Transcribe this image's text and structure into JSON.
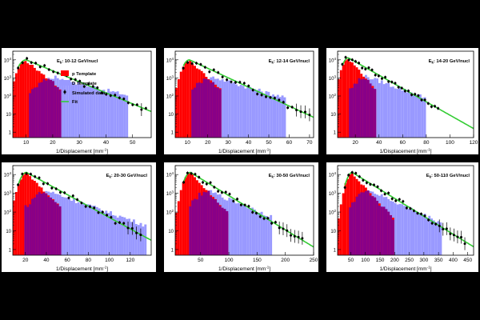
{
  "colors": {
    "p_template": "#ff0000",
    "d_template": "#9999ff",
    "overlap": "#880088",
    "data_points": "#000000",
    "fit": "#33cc33",
    "panel_background": "#ffffff",
    "page_background": "#000000"
  },
  "legend": {
    "p_label": "p Template",
    "d_label": "D Template",
    "data_label": "Simulated data",
    "fit_label": "Fit"
  },
  "chart_data": [
    {
      "type": "histogram",
      "panel": "top-left",
      "energy_label_main": "E",
      "energy_label_sub": "k",
      "energy_label_rest": ": 10-12 GeV/nucl",
      "xlabel": "1/Displacement [mm",
      "xlabel_sup": "-1",
      "xlabel_end": "]",
      "xlim": [
        5,
        57
      ],
      "xticks": [
        10,
        20,
        30,
        40,
        50
      ],
      "y_scale": "log",
      "ylim": [
        0.5,
        30000
      ],
      "yticks": [
        {
          "value": 1,
          "exp": ""
        },
        {
          "value": 10,
          "exp": ""
        },
        {
          "value": 100,
          "exp": "2"
        },
        {
          "value": 1000,
          "exp": "3"
        },
        {
          "value": 10000,
          "exp": "4"
        }
      ],
      "legend_shown": true,
      "legend_position": "top-left",
      "p_template": {
        "peak_x": 10,
        "peak": 9000,
        "width_low": 2.0,
        "decay_per_unit": 0.28,
        "end": 23
      },
      "d_template": {
        "peak_x": 21,
        "peak": 1100,
        "width_low": 5.0,
        "decay_per_unit": 0.085,
        "end": 48,
        "start": 11
      },
      "data": {
        "peak_x": 10,
        "peak": 10000,
        "width_low": 2.2,
        "decay_per_unit": 0.14,
        "points": 30,
        "x_start": 7,
        "x_end": 55
      }
    },
    {
      "type": "histogram",
      "panel": "top-middle",
      "energy_label_main": "E",
      "energy_label_sub": "k",
      "energy_label_rest": ": 12-14 GeV/nucl",
      "xlabel": "1/Displacement [mm",
      "xlabel_sup": "-1",
      "xlabel_end": "]",
      "xlim": [
        4,
        72
      ],
      "xticks": [
        10,
        20,
        30,
        40,
        50,
        60,
        70
      ],
      "y_scale": "log",
      "ylim": [
        0.5,
        30000
      ],
      "yticks": [
        {
          "value": 1,
          "exp": ""
        },
        {
          "value": 10,
          "exp": ""
        },
        {
          "value": 100,
          "exp": "2"
        },
        {
          "value": 1000,
          "exp": "3"
        },
        {
          "value": 10000,
          "exp": "4"
        }
      ],
      "legend_shown": false,
      "p_template": {
        "peak_x": 11,
        "peak": 9000,
        "width_low": 2.4,
        "decay_per_unit": 0.24,
        "end": 27
      },
      "d_template": {
        "peak_x": 23,
        "peak": 1100,
        "width_low": 6.0,
        "decay_per_unit": 0.075,
        "end": 58,
        "start": 12
      },
      "data": {
        "peak_x": 11,
        "peak": 10000,
        "width_low": 2.4,
        "decay_per_unit": 0.12,
        "points": 30,
        "x_start": 8,
        "x_end": 70
      }
    },
    {
      "type": "histogram",
      "panel": "top-right",
      "energy_label_main": "E",
      "energy_label_sub": "k",
      "energy_label_rest": ": 14-20 GeV/nucl",
      "xlabel": "1/Displacement [mm",
      "xlabel_sup": "-1",
      "xlabel_end": "]",
      "xlim": [
        5,
        120
      ],
      "xticks": [
        20,
        40,
        60,
        80,
        100,
        120
      ],
      "y_scale": "log",
      "ylim": [
        0.5,
        30000
      ],
      "yticks": [
        {
          "value": 1,
          "exp": ""
        },
        {
          "value": 10,
          "exp": ""
        },
        {
          "value": 100,
          "exp": "2"
        },
        {
          "value": 1000,
          "exp": "3"
        },
        {
          "value": 10000,
          "exp": "4"
        }
      ],
      "legend_shown": false,
      "p_template": {
        "peak_x": 14,
        "peak": 12000,
        "width_low": 3.5,
        "decay_per_unit": 0.17,
        "end": 38
      },
      "d_template": {
        "peak_x": 30,
        "peak": 1200,
        "width_low": 8.0,
        "decay_per_unit": 0.055,
        "end": 80,
        "start": 14
      },
      "data": {
        "peak_x": 14,
        "peak": 13000,
        "width_low": 3.5,
        "decay_per_unit": 0.085,
        "points": 30,
        "x_start": 9,
        "x_end": 90
      }
    },
    {
      "type": "histogram",
      "panel": "bottom-left",
      "energy_label_main": "E",
      "energy_label_sub": "k",
      "energy_label_rest": ": 20-30 GeV/nucl",
      "xlabel": "1/Displacement [mm",
      "xlabel_sup": "-1",
      "xlabel_end": "]",
      "xlim": [
        8,
        140
      ],
      "xticks": [
        20,
        40,
        60,
        80,
        100,
        120
      ],
      "y_scale": "log",
      "ylim": [
        0.5,
        30000
      ],
      "yticks": [
        {
          "value": 1,
          "exp": ""
        },
        {
          "value": 10,
          "exp": ""
        },
        {
          "value": 100,
          "exp": "2"
        },
        {
          "value": 1000,
          "exp": "3"
        },
        {
          "value": 10000,
          "exp": "4"
        }
      ],
      "legend_shown": false,
      "p_template": {
        "peak_x": 21,
        "peak": 12000,
        "width_low": 4.5,
        "decay_per_unit": 0.13,
        "end": 55
      },
      "d_template": {
        "peak_x": 42,
        "peak": 1300,
        "width_low": 11.0,
        "decay_per_unit": 0.045,
        "end": 135,
        "start": 18
      },
      "data": {
        "peak_x": 21,
        "peak": 13000,
        "width_low": 4.5,
        "decay_per_unit": 0.07,
        "points": 30,
        "x_start": 13,
        "x_end": 130
      }
    },
    {
      "type": "histogram",
      "panel": "bottom-middle",
      "energy_label_main": "E",
      "energy_label_sub": "k",
      "energy_label_rest": ": 30-50 GeV/nucl",
      "xlabel": "1/Displacement [mm",
      "xlabel_sup": "-1",
      "xlabel_end": "]",
      "xlim": [
        5,
        250
      ],
      "xticks": [
        50,
        100,
        150,
        200,
        250
      ],
      "y_scale": "log",
      "ylim": [
        0.5,
        30000
      ],
      "yticks": [
        {
          "value": 1,
          "exp": ""
        },
        {
          "value": 10,
          "exp": ""
        },
        {
          "value": 100,
          "exp": "2"
        },
        {
          "value": 1000,
          "exp": "3"
        },
        {
          "value": 10000,
          "exp": "4"
        }
      ],
      "legend_shown": false,
      "p_template": {
        "peak_x": 32,
        "peak": 12000,
        "width_low": 8.0,
        "decay_per_unit": 0.075,
        "end": 100
      },
      "d_template": {
        "peak_x": 65,
        "peak": 1300,
        "width_low": 18.0,
        "decay_per_unit": 0.028,
        "end": 175,
        "start": 28
      },
      "data": {
        "peak_x": 32,
        "peak": 13000,
        "width_low": 8.0,
        "decay_per_unit": 0.042,
        "points": 32,
        "x_start": 20,
        "x_end": 230
      }
    },
    {
      "type": "histogram",
      "panel": "bottom-right",
      "energy_label_main": "E",
      "energy_label_sub": "k",
      "energy_label_rest": ": 50-110 GeV/nucl",
      "xlabel": "1/Displacement [mm",
      "xlabel_sup": "-1",
      "xlabel_end": "]",
      "xlim": [
        5,
        470
      ],
      "xticks": [
        50,
        100,
        150,
        200,
        250,
        300,
        350,
        400,
        450
      ],
      "y_scale": "log",
      "ylim": [
        0.5,
        30000
      ],
      "yticks": [
        {
          "value": 1,
          "exp": ""
        },
        {
          "value": 10,
          "exp": ""
        },
        {
          "value": 100,
          "exp": "2"
        },
        {
          "value": 1000,
          "exp": "3"
        },
        {
          "value": 10000,
          "exp": "4"
        }
      ],
      "legend_shown": false,
      "p_template": {
        "peak_x": 55,
        "peak": 12000,
        "width_low": 14.0,
        "decay_per_unit": 0.04,
        "end": 200
      },
      "d_template": {
        "peak_x": 110,
        "peak": 1500,
        "width_low": 30.0,
        "decay_per_unit": 0.016,
        "end": 360,
        "start": 45
      },
      "data": {
        "peak_x": 55,
        "peak": 13000,
        "width_low": 14.0,
        "decay_per_unit": 0.022,
        "points": 34,
        "x_start": 30,
        "x_end": 440
      }
    }
  ]
}
